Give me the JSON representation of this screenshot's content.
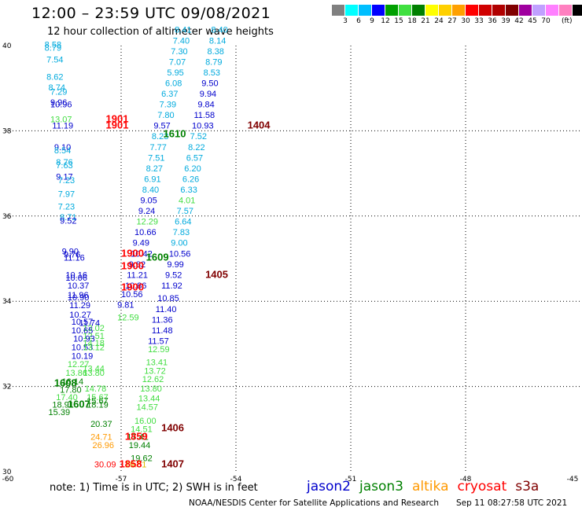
{
  "header": {
    "title": "12:00 – 23:59 UTC 09/08/2021",
    "subtitle": "12 hour collection of altimeter wave heights"
  },
  "colorbar": {
    "unit": "(ft)",
    "colors": [
      "#808080",
      "#00ffff",
      "#00bfff",
      "#0000ff",
      "#00a000",
      "#40e040",
      "#008000",
      "#ffff00",
      "#ffd000",
      "#ffa000",
      "#ff0000",
      "#d00000",
      "#b00000",
      "#800000",
      "#a000a0",
      "#c0a0ff",
      "#ff80ff",
      "#ff80c0",
      "#000000"
    ],
    "ticks": [
      "3",
      "6",
      "9",
      "12",
      "15",
      "18",
      "21",
      "24",
      "27",
      "30",
      "33",
      "36",
      "39",
      "42",
      "45",
      "70"
    ]
  },
  "axes": {
    "lon_range": [
      -60,
      -45
    ],
    "lat_range": [
      30,
      40
    ],
    "x_ticks": [
      "-60",
      "-57",
      "-54",
      "-51",
      "-48",
      "-45"
    ],
    "y_ticks": [
      "30",
      "32",
      "34",
      "36",
      "38",
      "40"
    ]
  },
  "colors": {
    "jason2": "#0000cc",
    "jason3": "#008000",
    "altika": "#ff9900",
    "cryosat": "#ff0000",
    "s3a": "#800000",
    "lightblue": "#00aadd",
    "lightgreen": "#40dd40",
    "yellow": "#ddbb00",
    "orange": "#ff8800",
    "red": "#ff0000",
    "darkred": "#800000"
  },
  "swh_readings": [
    {
      "lon": -59.0,
      "lat": 39.95,
      "v": "8.58",
      "c": "lightblue"
    },
    {
      "lon": -59.0,
      "lat": 39.88,
      "v": "8.79",
      "c": "lightblue"
    },
    {
      "lon": -58.95,
      "lat": 39.6,
      "v": "7.54",
      "c": "lightblue"
    },
    {
      "lon": -58.95,
      "lat": 39.2,
      "v": "8.62",
      "c": "lightblue"
    },
    {
      "lon": -58.9,
      "lat": 38.95,
      "v": "8.74",
      "c": "lightblue"
    },
    {
      "lon": -58.85,
      "lat": 38.85,
      "v": "7.29",
      "c": "lightblue"
    },
    {
      "lon": -58.85,
      "lat": 38.6,
      "v": "9.96",
      "c": "jason2"
    },
    {
      "lon": -58.85,
      "lat": 38.55,
      "v": "10.96",
      "c": "jason2"
    },
    {
      "lon": -58.85,
      "lat": 38.2,
      "v": "13.07",
      "c": "lightgreen"
    },
    {
      "lon": -58.8,
      "lat": 38.05,
      "v": "11.19",
      "c": "jason2"
    },
    {
      "lon": -58.75,
      "lat": 37.55,
      "v": "9.10",
      "c": "jason2"
    },
    {
      "lon": -58.75,
      "lat": 37.47,
      "v": "8.54",
      "c": "lightblue"
    },
    {
      "lon": -58.7,
      "lat": 37.2,
      "v": "8.76",
      "c": "lightblue"
    },
    {
      "lon": -58.7,
      "lat": 37.12,
      "v": "7.63",
      "c": "lightblue"
    },
    {
      "lon": -58.7,
      "lat": 36.85,
      "v": "9.17",
      "c": "jason2"
    },
    {
      "lon": -58.65,
      "lat": 36.77,
      "v": "7.23",
      "c": "lightblue"
    },
    {
      "lon": -58.65,
      "lat": 36.45,
      "v": "7.97",
      "c": "lightblue"
    },
    {
      "lon": -58.65,
      "lat": 36.15,
      "v": "7.23",
      "c": "lightblue"
    },
    {
      "lon": -58.6,
      "lat": 35.9,
      "v": "8.71",
      "c": "lightblue"
    },
    {
      "lon": -58.6,
      "lat": 35.82,
      "v": "9.52",
      "c": "jason2"
    },
    {
      "lon": -58.55,
      "lat": 35.1,
      "v": "9.90",
      "c": "jason2"
    },
    {
      "lon": -58.5,
      "lat": 35.03,
      "v": "9.76",
      "c": "jason2"
    },
    {
      "lon": -58.5,
      "lat": 34.95,
      "v": "11.16",
      "c": "jason2"
    },
    {
      "lon": -58.45,
      "lat": 34.55,
      "v": "10.16",
      "c": "jason2"
    },
    {
      "lon": -58.45,
      "lat": 34.48,
      "v": "10.06",
      "c": "jason2"
    },
    {
      "lon": -58.4,
      "lat": 34.3,
      "v": "10.37",
      "c": "jason2"
    },
    {
      "lon": -58.4,
      "lat": 34.08,
      "v": "11.96",
      "c": "jason2"
    },
    {
      "lon": -58.4,
      "lat": 34.02,
      "v": "10.90",
      "c": "jason2"
    },
    {
      "lon": -58.35,
      "lat": 33.84,
      "v": "11.29",
      "c": "jason2"
    },
    {
      "lon": -58.35,
      "lat": 33.62,
      "v": "10.27",
      "c": "jason2"
    },
    {
      "lon": -58.3,
      "lat": 33.45,
      "v": "10.57",
      "c": "jason2"
    },
    {
      "lon": -58.1,
      "lat": 33.42,
      "v": "11.74",
      "c": "jason2"
    },
    {
      "lon": -58.0,
      "lat": 33.3,
      "v": "13.02",
      "c": "lightgreen"
    },
    {
      "lon": -58.3,
      "lat": 33.25,
      "v": "10.65",
      "c": "jason2"
    },
    {
      "lon": -58.0,
      "lat": 33.12,
      "v": "12.51",
      "c": "lightgreen"
    },
    {
      "lon": -58.25,
      "lat": 33.05,
      "v": "10.93",
      "c": "jason2"
    },
    {
      "lon": -58.0,
      "lat": 32.95,
      "v": "14.18",
      "c": "lightgreen"
    },
    {
      "lon": -58.3,
      "lat": 32.85,
      "v": "10.53",
      "c": "jason2"
    },
    {
      "lon": -58.0,
      "lat": 32.85,
      "v": "13.12",
      "c": "lightgreen"
    },
    {
      "lon": -58.3,
      "lat": 32.65,
      "v": "10.19",
      "c": "jason2"
    },
    {
      "lon": -58.4,
      "lat": 32.45,
      "v": "12.27",
      "c": "lightgreen"
    },
    {
      "lon": -58.0,
      "lat": 32.35,
      "v": "13.44",
      "c": "lightgreen"
    },
    {
      "lon": -58.45,
      "lat": 32.25,
      "v": "13.86",
      "c": "lightgreen"
    },
    {
      "lon": -58.0,
      "lat": 32.25,
      "v": "13.80",
      "c": "lightgreen"
    },
    {
      "lon": -58.55,
      "lat": 32.05,
      "v": "16.14",
      "c": "jason3"
    },
    {
      "lon": -57.95,
      "lat": 31.88,
      "v": "14.78",
      "c": "lightgreen"
    },
    {
      "lon": -58.6,
      "lat": 31.85,
      "v": "17.80",
      "c": "jason3"
    },
    {
      "lon": -58.7,
      "lat": 31.68,
      "v": "17.40",
      "c": "lightgreen"
    },
    {
      "lon": -57.9,
      "lat": 31.68,
      "v": "15.67",
      "c": "lightgreen"
    },
    {
      "lon": -57.9,
      "lat": 31.6,
      "v": "15.67",
      "c": "jason3"
    },
    {
      "lon": -58.8,
      "lat": 31.5,
      "v": "18.91",
      "c": "jason3"
    },
    {
      "lon": -57.9,
      "lat": 31.5,
      "v": "18.19",
      "c": "jason3"
    },
    {
      "lon": -58.9,
      "lat": 31.33,
      "v": "15.39",
      "c": "jason3"
    },
    {
      "lon": -57.8,
      "lat": 31.05,
      "v": "20.37",
      "c": "jason3"
    },
    {
      "lon": -57.8,
      "lat": 30.75,
      "v": "24.71",
      "c": "altika"
    },
    {
      "lon": -57.75,
      "lat": 30.55,
      "v": "26.96",
      "c": "altika"
    },
    {
      "lon": -57.7,
      "lat": 30.1,
      "v": "30.09",
      "c": "red"
    },
    {
      "lon": -56.9,
      "lat": 30.1,
      "v": "19.81",
      "c": "yellow"
    },
    {
      "lon": -56.75,
      "lat": 30.25,
      "v": "19.62",
      "c": "jason3"
    },
    {
      "lon": -56.8,
      "lat": 30.55,
      "v": "19.44",
      "c": "jason3"
    },
    {
      "lon": -56.85,
      "lat": 30.75,
      "v": "17.41",
      "c": "jason3"
    },
    {
      "lon": -56.75,
      "lat": 30.93,
      "v": "14.51",
      "c": "lightgreen"
    },
    {
      "lon": -56.65,
      "lat": 31.13,
      "v": "16.00",
      "c": "lightgreen"
    },
    {
      "lon": -56.6,
      "lat": 31.45,
      "v": "14.57",
      "c": "lightgreen"
    },
    {
      "lon": -56.55,
      "lat": 31.65,
      "v": "13.44",
      "c": "lightgreen"
    },
    {
      "lon": -56.5,
      "lat": 31.88,
      "v": "13.80",
      "c": "lightgreen"
    },
    {
      "lon": -56.45,
      "lat": 32.1,
      "v": "12.62",
      "c": "lightgreen"
    },
    {
      "lon": -56.4,
      "lat": 32.3,
      "v": "13.72",
      "c": "lightgreen"
    },
    {
      "lon": -56.35,
      "lat": 32.5,
      "v": "13.41",
      "c": "lightgreen"
    },
    {
      "lon": -56.3,
      "lat": 32.8,
      "v": "12.59",
      "c": "lightgreen"
    },
    {
      "lon": -56.3,
      "lat": 33.0,
      "v": "11.57",
      "c": "jason2"
    },
    {
      "lon": -56.2,
      "lat": 33.25,
      "v": "11.48",
      "c": "jason2"
    },
    {
      "lon": -56.2,
      "lat": 33.5,
      "v": "11.36",
      "c": "jason2"
    },
    {
      "lon": -56.1,
      "lat": 33.75,
      "v": "11.40",
      "c": "jason2"
    },
    {
      "lon": -56.05,
      "lat": 34.0,
      "v": "10.85",
      "c": "jason2"
    },
    {
      "lon": -55.95,
      "lat": 34.3,
      "v": "11.92",
      "c": "jason2"
    },
    {
      "lon": -55.85,
      "lat": 34.55,
      "v": "9.52",
      "c": "jason2"
    },
    {
      "lon": -55.8,
      "lat": 34.8,
      "v": "9.99",
      "c": "jason2"
    },
    {
      "lon": -55.75,
      "lat": 35.05,
      "v": "10.56",
      "c": "jason2"
    },
    {
      "lon": -55.7,
      "lat": 35.3,
      "v": "9.00",
      "c": "lightblue"
    },
    {
      "lon": -55.65,
      "lat": 35.55,
      "v": "7.83",
      "c": "lightblue"
    },
    {
      "lon": -55.6,
      "lat": 35.8,
      "v": "6.64",
      "c": "lightblue"
    },
    {
      "lon": -55.55,
      "lat": 36.05,
      "v": "7.57",
      "c": "lightblue"
    },
    {
      "lon": -55.5,
      "lat": 36.3,
      "v": "4.01",
      "c": "lightgreen"
    },
    {
      "lon": -55.45,
      "lat": 36.55,
      "v": "6.33",
      "c": "lightblue"
    },
    {
      "lon": -55.4,
      "lat": 36.8,
      "v": "6.26",
      "c": "lightblue"
    },
    {
      "lon": -55.35,
      "lat": 37.05,
      "v": "6.20",
      "c": "lightblue"
    },
    {
      "lon": -55.3,
      "lat": 37.3,
      "v": "6.57",
      "c": "lightblue"
    },
    {
      "lon": -55.25,
      "lat": 37.55,
      "v": "8.22",
      "c": "lightblue"
    },
    {
      "lon": -55.2,
      "lat": 37.8,
      "v": "7.52",
      "c": "lightblue"
    },
    {
      "lon": -55.15,
      "lat": 38.05,
      "v": "10.93",
      "c": "jason2"
    },
    {
      "lon": -55.1,
      "lat": 38.3,
      "v": "11.58",
      "c": "jason2"
    },
    {
      "lon": -55.0,
      "lat": 38.55,
      "v": "9.84",
      "c": "jason2"
    },
    {
      "lon": -54.95,
      "lat": 38.8,
      "v": "9.94",
      "c": "jason2"
    },
    {
      "lon": -54.9,
      "lat": 39.05,
      "v": "9.50",
      "c": "jason2"
    },
    {
      "lon": -54.85,
      "lat": 39.3,
      "v": "8.53",
      "c": "lightblue"
    },
    {
      "lon": -54.8,
      "lat": 39.55,
      "v": "8.79",
      "c": "lightblue"
    },
    {
      "lon": -54.75,
      "lat": 39.8,
      "v": "8.38",
      "c": "lightblue"
    },
    {
      "lon": -54.7,
      "lat": 40.05,
      "v": "8.14",
      "c": "lightblue"
    },
    {
      "lon": -54.65,
      "lat": 40.3,
      "v": "8.40",
      "c": "lightblue"
    },
    {
      "lon": -55.6,
      "lat": 40.3,
      "v": "8.41",
      "c": "lightblue"
    },
    {
      "lon": -55.65,
      "lat": 40.05,
      "v": "7.40",
      "c": "lightblue"
    },
    {
      "lon": -55.7,
      "lat": 39.8,
      "v": "7.30",
      "c": "lightblue"
    },
    {
      "lon": -55.75,
      "lat": 39.55,
      "v": "7.07",
      "c": "lightblue"
    },
    {
      "lon": -55.8,
      "lat": 39.3,
      "v": "5.95",
      "c": "lightblue"
    },
    {
      "lon": -55.85,
      "lat": 39.05,
      "v": "6.08",
      "c": "lightblue"
    },
    {
      "lon": -55.95,
      "lat": 38.8,
      "v": "6.37",
      "c": "lightblue"
    },
    {
      "lon": -56.0,
      "lat": 38.55,
      "v": "7.39",
      "c": "lightblue"
    },
    {
      "lon": -56.05,
      "lat": 38.3,
      "v": "7.80",
      "c": "lightblue"
    },
    {
      "lon": -56.15,
      "lat": 38.05,
      "v": "9.57",
      "c": "jason2"
    },
    {
      "lon": -56.2,
      "lat": 37.8,
      "v": "8.23",
      "c": "lightblue"
    },
    {
      "lon": -56.25,
      "lat": 37.55,
      "v": "7.77",
      "c": "lightblue"
    },
    {
      "lon": -56.3,
      "lat": 37.3,
      "v": "7.51",
      "c": "lightblue"
    },
    {
      "lon": -56.35,
      "lat": 37.05,
      "v": "8.27",
      "c": "lightblue"
    },
    {
      "lon": -56.4,
      "lat": 36.8,
      "v": "6.91",
      "c": "lightblue"
    },
    {
      "lon": -56.45,
      "lat": 36.55,
      "v": "8.40",
      "c": "lightblue"
    },
    {
      "lon": -56.5,
      "lat": 36.3,
      "v": "9.05",
      "c": "jason2"
    },
    {
      "lon": -56.55,
      "lat": 36.05,
      "v": "9.24",
      "c": "jason2"
    },
    {
      "lon": -56.6,
      "lat": 35.8,
      "v": "12.29",
      "c": "lightgreen"
    },
    {
      "lon": -56.65,
      "lat": 35.55,
      "v": "10.66",
      "c": "jason2"
    },
    {
      "lon": -56.7,
      "lat": 35.3,
      "v": "9.49",
      "c": "jason2"
    },
    {
      "lon": -56.75,
      "lat": 35.05,
      "v": "10.42",
      "c": "jason2"
    },
    {
      "lon": -56.8,
      "lat": 34.8,
      "v": "9.82",
      "c": "jason2"
    },
    {
      "lon": -56.85,
      "lat": 34.55,
      "v": "11.21",
      "c": "jason2"
    },
    {
      "lon": -56.9,
      "lat": 34.3,
      "v": "10.86",
      "c": "jason2"
    },
    {
      "lon": -57.0,
      "lat": 34.1,
      "v": "10.56",
      "c": "jason2"
    },
    {
      "lon": -57.1,
      "lat": 33.85,
      "v": "9.81",
      "c": "jason2"
    },
    {
      "lon": -57.1,
      "lat": 33.55,
      "v": "12.59",
      "c": "lightgreen"
    }
  ],
  "time_labels": [
    {
      "lon": -57.4,
      "lat": 38.2,
      "v": "1901",
      "c": "red"
    },
    {
      "lon": -57.4,
      "lat": 38.05,
      "v": "1901",
      "c": "red"
    },
    {
      "lon": -55.9,
      "lat": 37.85,
      "v": "1610",
      "c": "jason3"
    },
    {
      "lon": -53.7,
      "lat": 38.05,
      "v": "1404",
      "c": "s3a"
    },
    {
      "lon": -57.0,
      "lat": 35.05,
      "v": "1900",
      "c": "red"
    },
    {
      "lon": -56.35,
      "lat": 34.95,
      "v": "1609",
      "c": "jason3"
    },
    {
      "lon": -57.0,
      "lat": 34.75,
      "v": "1900",
      "c": "red"
    },
    {
      "lon": -57.0,
      "lat": 34.25,
      "v": "1900",
      "c": "red"
    },
    {
      "lon": -54.8,
      "lat": 34.55,
      "v": "1405",
      "c": "s3a"
    },
    {
      "lon": -58.75,
      "lat": 32.0,
      "v": "1608",
      "c": "jason3"
    },
    {
      "lon": -58.4,
      "lat": 31.5,
      "v": "1607",
      "c": "jason3"
    },
    {
      "lon": -56.9,
      "lat": 30.75,
      "v": "1859",
      "c": "red"
    },
    {
      "lon": -55.95,
      "lat": 30.95,
      "v": "1406",
      "c": "s3a"
    },
    {
      "lon": -57.05,
      "lat": 30.1,
      "v": "1858",
      "c": "red"
    },
    {
      "lon": -55.95,
      "lat": 30.1,
      "v": "1407",
      "c": "s3a"
    }
  ],
  "footer": {
    "note": "note: 1) Time is in UTC; 2) SWH is in feet",
    "legend": [
      {
        "label": "jason2",
        "c": "jason2"
      },
      {
        "label": "jason3",
        "c": "jason3"
      },
      {
        "label": "altika",
        "c": "altika"
      },
      {
        "label": "cryosat",
        "c": "cryosat"
      },
      {
        "label": "s3a",
        "c": "s3a"
      }
    ],
    "credit": "NOAA/NESDIS Center for Satellite Applications and Research",
    "stamp": "Sep 11 08:27:58 UTC 2021"
  }
}
